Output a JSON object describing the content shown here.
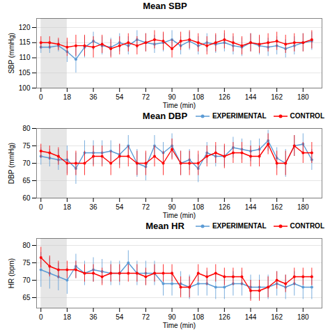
{
  "chart_data": [
    {
      "type": "line",
      "title": "Mean SBP",
      "xlabel": "Time (min)",
      "ylabel": "SBP (mmHg)",
      "x": [
        0,
        6,
        12,
        18,
        24,
        30,
        36,
        42,
        48,
        54,
        60,
        66,
        72,
        78,
        84,
        90,
        96,
        102,
        108,
        114,
        120,
        126,
        132,
        138,
        144,
        150,
        156,
        162,
        168,
        174,
        180,
        186
      ],
      "series": [
        {
          "name": "EXPERIMENTAL",
          "color": "#5B9BD5",
          "values": [
            113.5,
            113.5,
            114.0,
            112.0,
            109.5,
            113.5,
            115.5,
            114.0,
            113.5,
            115.0,
            114.0,
            116.0,
            115.0,
            114.5,
            115.0,
            116.0,
            114.0,
            115.5,
            114.0,
            115.0,
            114.5,
            115.0,
            114.0,
            113.5,
            115.0,
            114.0,
            113.5,
            114.0,
            113.0,
            114.0,
            115.0,
            115.5
          ],
          "errors": [
            2.0,
            2.0,
            2.0,
            3.5,
            4.5,
            3.5,
            3.0,
            3.0,
            3.0,
            3.0,
            3.0,
            3.0,
            3.0,
            3.0,
            3.0,
            3.0,
            3.0,
            3.0,
            3.0,
            3.0,
            3.0,
            3.0,
            3.0,
            3.0,
            3.0,
            3.0,
            3.0,
            3.0,
            3.0,
            3.0,
            3.0,
            3.0
          ]
        },
        {
          "name": "CONTROL",
          "color": "#FF0000",
          "values": [
            115.0,
            115.0,
            114.5,
            113.5,
            114.0,
            114.0,
            113.5,
            114.5,
            113.0,
            114.0,
            115.0,
            114.0,
            115.0,
            116.0,
            115.5,
            113.0,
            115.5,
            116.0,
            115.0,
            114.0,
            115.0,
            116.0,
            115.0,
            114.0,
            115.0,
            114.5,
            115.0,
            115.5,
            114.5,
            115.0,
            115.0,
            116.0
          ],
          "errors": [
            2.0,
            2.0,
            2.0,
            3.0,
            3.5,
            3.5,
            3.5,
            3.0,
            3.0,
            3.0,
            3.0,
            3.0,
            3.0,
            3.0,
            3.0,
            3.0,
            3.0,
            3.0,
            3.0,
            3.0,
            3.0,
            3.0,
            3.0,
            3.0,
            3.0,
            3.0,
            3.0,
            3.0,
            3.0,
            3.0,
            3.0,
            3.0
          ]
        }
      ],
      "shade": {
        "x0": 0,
        "x1": 18,
        "color": "#C8C8C8"
      },
      "xlim": [
        -3,
        193
      ],
      "xticks": [
        0,
        18,
        36,
        54,
        72,
        90,
        108,
        126,
        144,
        162,
        180
      ],
      "ylim": [
        100,
        123
      ],
      "yticks": [
        100,
        105,
        110,
        115,
        120
      ],
      "grid": true,
      "marker": "circle",
      "line_style": "solid"
    },
    {
      "type": "line",
      "title": "Mean DBP",
      "xlabel": "Time (min)",
      "ylabel": "DBP (mmHg)",
      "x": [
        0,
        6,
        12,
        18,
        24,
        30,
        36,
        42,
        48,
        54,
        60,
        66,
        72,
        78,
        84,
        90,
        96,
        102,
        108,
        114,
        120,
        126,
        132,
        138,
        144,
        150,
        156,
        162,
        168,
        174,
        180,
        186
      ],
      "series": [
        {
          "name": "EXPERIMENTAL",
          "color": "#5B9BD5",
          "values": [
            72.0,
            71.5,
            71.0,
            71.0,
            68.5,
            73.0,
            73.0,
            73.0,
            73.5,
            72.5,
            75.0,
            70.0,
            69.0,
            75.0,
            73.0,
            75.0,
            70.0,
            71.0,
            68.5,
            73.0,
            72.0,
            72.0,
            74.5,
            74.0,
            73.5,
            74.0,
            76.5,
            71.5,
            70.0,
            75.0,
            75.5,
            71.0
          ],
          "errors": [
            2.5,
            2.5,
            3.0,
            4.0,
            4.5,
            3.5,
            3.5,
            3.5,
            3.0,
            3.0,
            3.0,
            4.0,
            4.0,
            3.0,
            3.0,
            3.5,
            3.5,
            3.0,
            4.0,
            3.0,
            3.0,
            3.0,
            3.0,
            3.0,
            3.0,
            3.0,
            3.0,
            3.0,
            4.0,
            3.0,
            3.0,
            3.0
          ]
        },
        {
          "name": "CONTROL",
          "color": "#FF0000",
          "values": [
            73.5,
            73.0,
            72.0,
            70.0,
            70.0,
            70.0,
            72.0,
            72.0,
            70.0,
            72.0,
            72.0,
            70.0,
            70.0,
            72.0,
            70.0,
            74.0,
            70.0,
            70.0,
            70.0,
            72.0,
            73.0,
            72.0,
            73.0,
            73.0,
            72.0,
            72.0,
            75.5,
            70.0,
            70.0,
            75.0,
            73.0,
            73.0
          ],
          "errors": [
            2.0,
            2.0,
            2.5,
            3.5,
            3.5,
            3.5,
            3.0,
            3.0,
            3.5,
            3.5,
            3.0,
            3.5,
            3.5,
            3.0,
            3.5,
            3.0,
            3.5,
            3.5,
            3.5,
            3.0,
            3.0,
            3.5,
            3.0,
            3.0,
            3.0,
            3.0,
            3.0,
            3.5,
            3.5,
            3.0,
            3.0,
            3.0
          ]
        }
      ],
      "shade": {
        "x0": 0,
        "x1": 18,
        "color": "#C8C8C8"
      },
      "xlim": [
        -3,
        193
      ],
      "xticks": [
        0,
        18,
        36,
        54,
        72,
        90,
        108,
        126,
        144,
        162,
        180
      ],
      "ylim": [
        60,
        80
      ],
      "yticks": [
        60,
        65,
        70,
        75,
        80
      ],
      "grid": true,
      "legend": "upper right",
      "marker": "circle",
      "line_style": "solid"
    },
    {
      "type": "line",
      "title": "Mean HR",
      "xlabel": "Time (min)",
      "ylabel": "HR (bpm)",
      "x": [
        0,
        6,
        12,
        18,
        24,
        30,
        36,
        42,
        48,
        54,
        60,
        66,
        72,
        78,
        84,
        90,
        96,
        102,
        108,
        114,
        120,
        126,
        132,
        138,
        144,
        150,
        156,
        162,
        168,
        174,
        180,
        186
      ],
      "series": [
        {
          "name": "EXPERIMENTAL",
          "color": "#5B9BD5",
          "values": [
            73.0,
            72.0,
            71.0,
            70.0,
            74.0,
            72.0,
            73.0,
            72.5,
            72.0,
            72.0,
            75.0,
            72.0,
            72.0,
            72.0,
            69.0,
            69.0,
            69.0,
            68.0,
            69.0,
            69.0,
            68.0,
            68.0,
            69.0,
            69.0,
            68.0,
            68.0,
            68.0,
            69.0,
            68.0,
            69.0,
            68.0,
            68.0
          ],
          "errors": [
            5.0,
            4.5,
            4.0,
            4.0,
            3.5,
            3.5,
            3.5,
            3.5,
            3.5,
            3.5,
            3.5,
            3.5,
            3.5,
            3.5,
            3.5,
            3.5,
            3.5,
            3.5,
            3.5,
            3.5,
            3.5,
            3.5,
            3.5,
            3.5,
            3.5,
            3.5,
            3.5,
            3.5,
            3.5,
            3.5,
            3.5,
            3.5
          ]
        },
        {
          "name": "CONTROL",
          "color": "#FF0000",
          "values": [
            76.5,
            74.0,
            73.0,
            73.0,
            73.0,
            72.0,
            72.0,
            71.0,
            72.0,
            72.0,
            72.0,
            72.0,
            71.0,
            72.0,
            72.0,
            72.0,
            68.0,
            68.0,
            72.0,
            71.0,
            72.0,
            71.0,
            71.0,
            71.0,
            67.0,
            67.0,
            68.0,
            70.0,
            69.0,
            71.0,
            71.0,
            71.0
          ],
          "errors": [
            3.0,
            3.0,
            2.5,
            2.5,
            2.5,
            2.5,
            2.5,
            2.5,
            2.5,
            2.5,
            2.5,
            2.5,
            2.5,
            2.5,
            2.5,
            2.5,
            3.0,
            3.0,
            2.5,
            2.5,
            2.5,
            2.5,
            2.5,
            2.5,
            3.0,
            3.0,
            3.0,
            2.5,
            2.5,
            2.5,
            2.5,
            2.5
          ]
        }
      ],
      "shade": {
        "x0": 0,
        "x1": 18,
        "color": "#C8C8C8"
      },
      "xlim": [
        -3,
        193
      ],
      "xticks": [
        0,
        18,
        36,
        54,
        72,
        90,
        108,
        126,
        144,
        162,
        180
      ],
      "ylim": [
        62,
        82
      ],
      "yticks": [
        65,
        70,
        75,
        80
      ],
      "grid": true,
      "legend": "upper right",
      "marker": "circle",
      "line_style": "solid"
    }
  ]
}
